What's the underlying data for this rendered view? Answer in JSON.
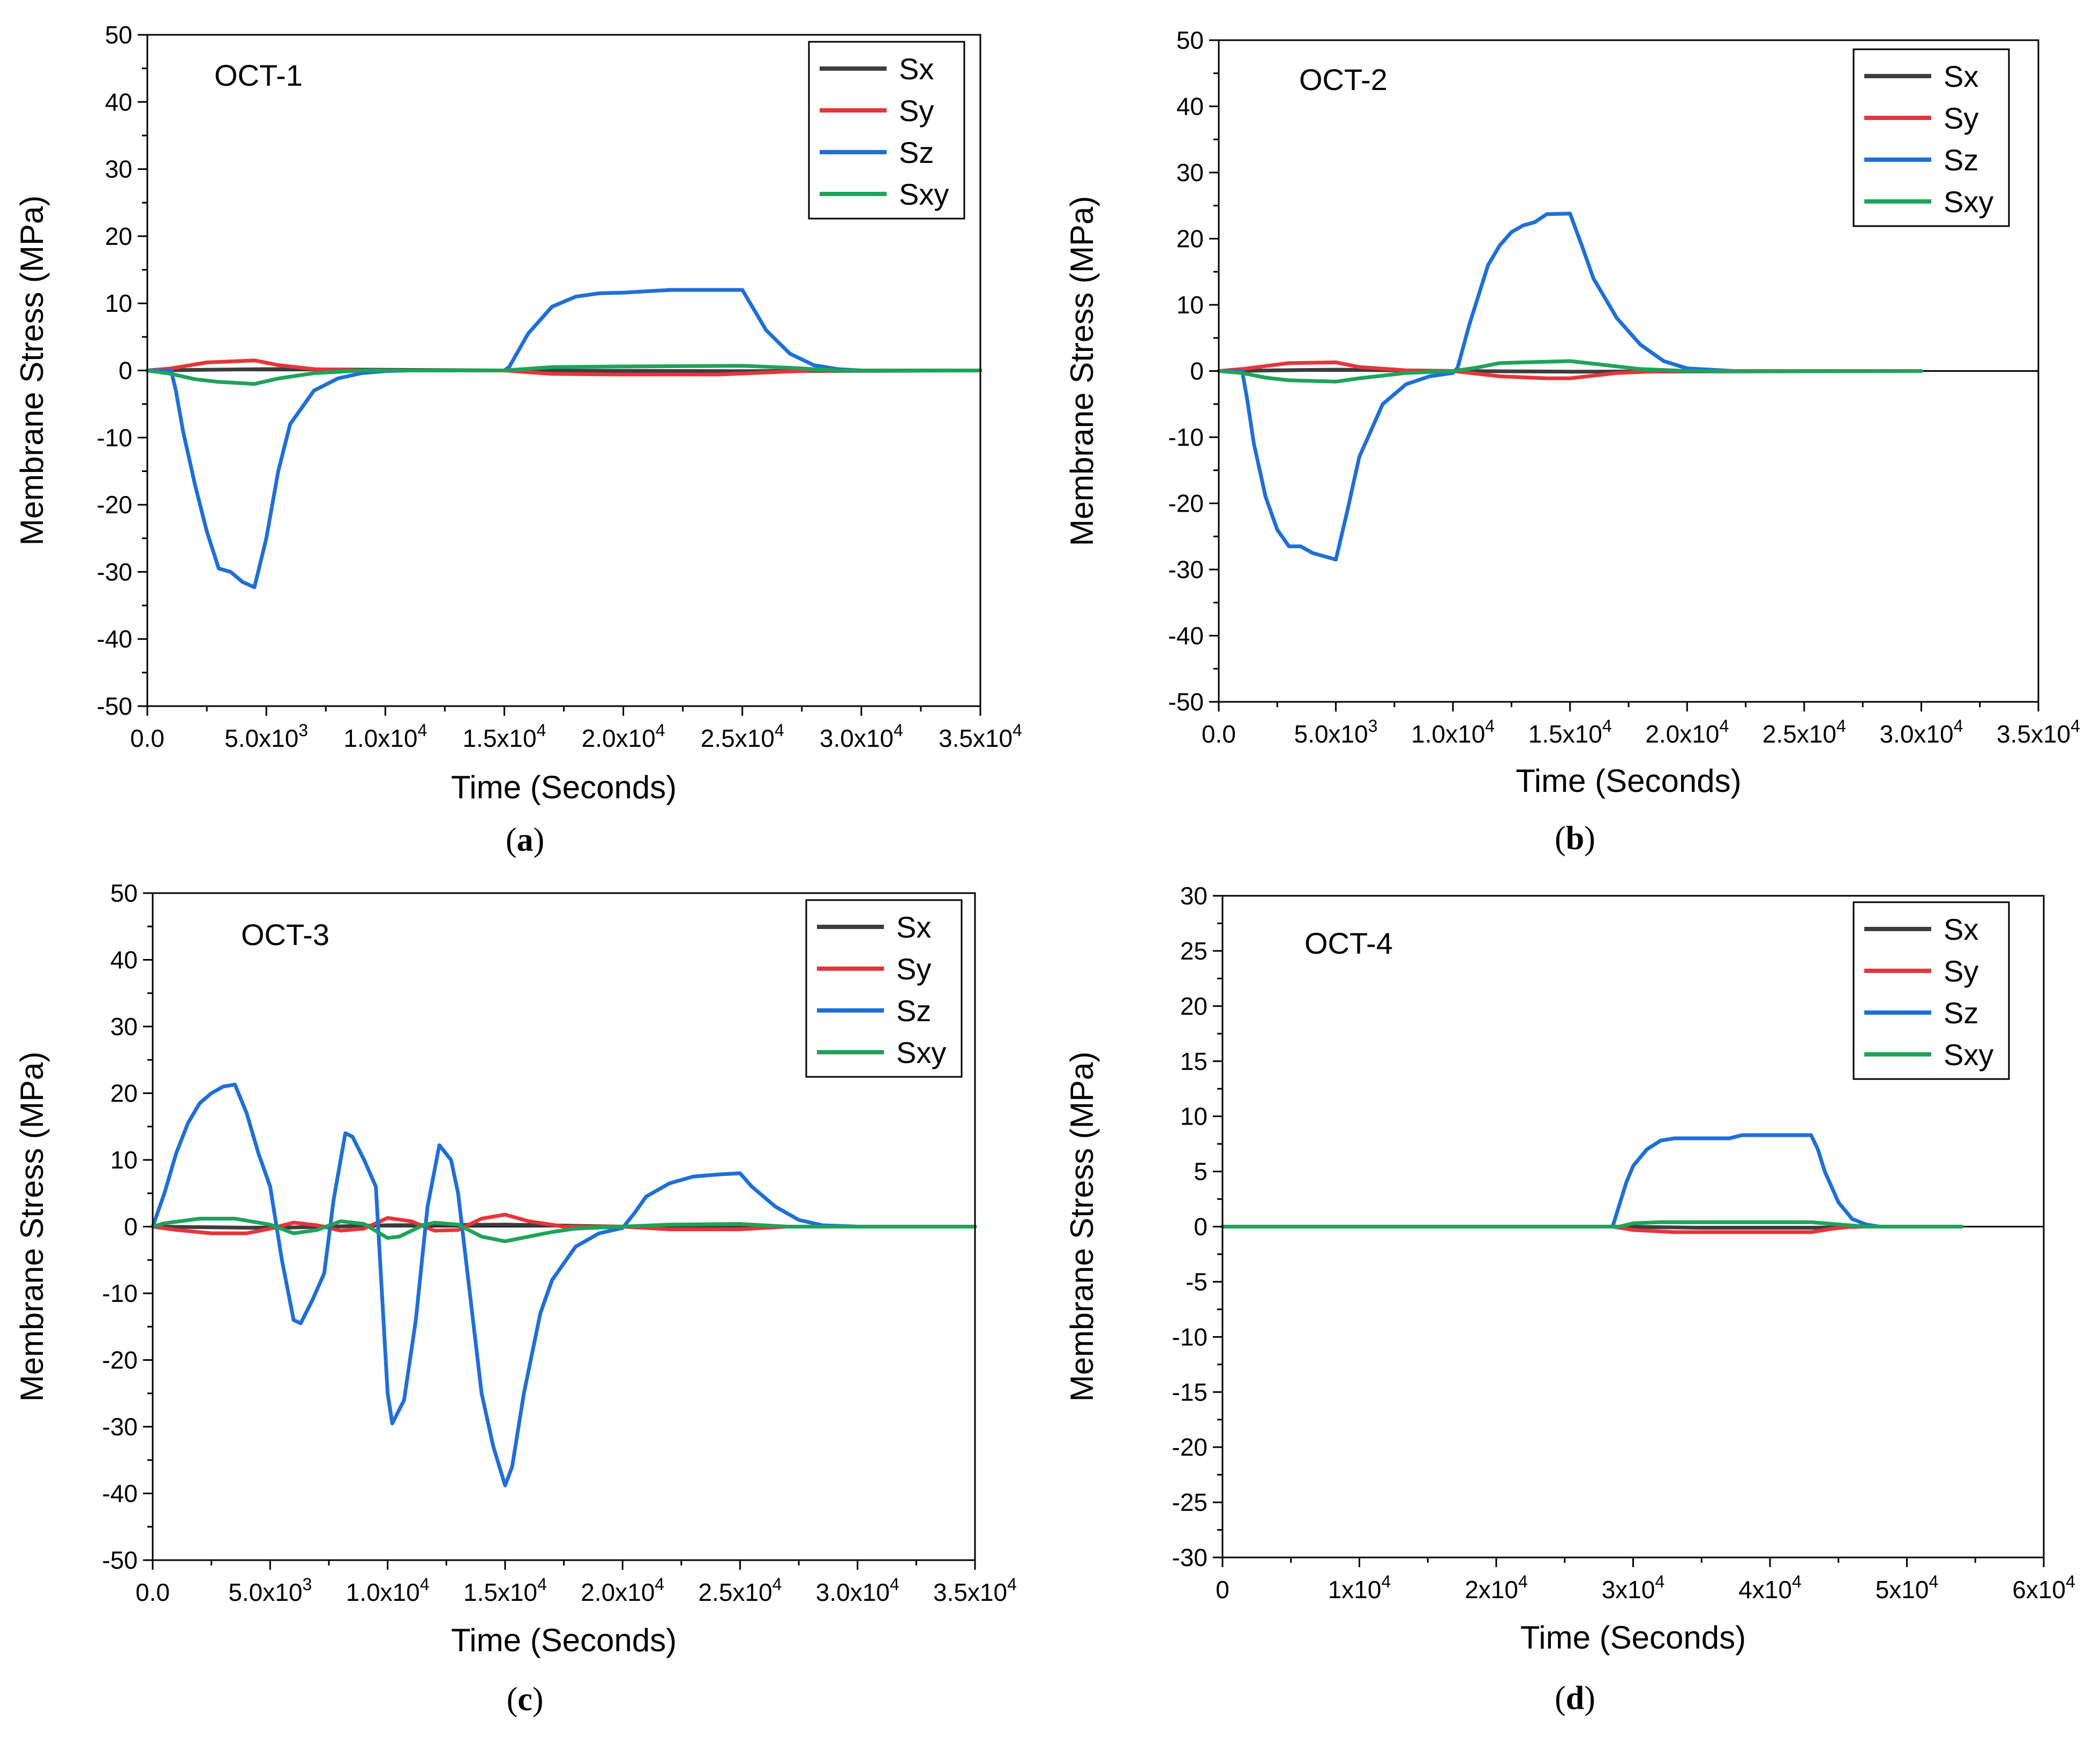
{
  "series_colors": {
    "Sx": "#3d3d3d",
    "Sy": "#e8343a",
    "Sz": "#1f6fd6",
    "Sxy": "#1fa35a"
  },
  "chart_data": [
    {
      "type": "line",
      "title": "OCT-1",
      "caption": "(a)",
      "caption_letter": "a",
      "xlabel": "Time (Seconds)",
      "ylabel": "Membrane Stress (MPa)",
      "xlim": [
        0,
        35000
      ],
      "ylim": [
        -50,
        50
      ],
      "xticks": [
        0,
        5000,
        10000,
        15000,
        20000,
        25000,
        30000,
        35000
      ],
      "xtick_labels": [
        {
          "m": "0.0",
          "e": ""
        },
        {
          "m": "5.0x10",
          "e": "3"
        },
        {
          "m": "1.0x10",
          "e": "4"
        },
        {
          "m": "1.5x10",
          "e": "4"
        },
        {
          "m": "2.0x10",
          "e": "4"
        },
        {
          "m": "2.5x10",
          "e": "4"
        },
        {
          "m": "3.0x10",
          "e": "4"
        },
        {
          "m": "3.5x10",
          "e": "4"
        }
      ],
      "yticks": [
        -50,
        -40,
        -30,
        -20,
        -10,
        0,
        10,
        20,
        30,
        40,
        50
      ],
      "ytick_labels": [
        "-50",
        "-40",
        "-30",
        "-20",
        "-10",
        "0",
        "10",
        "20",
        "30",
        "40",
        "50"
      ],
      "legend": {
        "position": "top-right",
        "entries": [
          "Sx",
          "Sy",
          "Sz",
          "Sxy"
        ]
      },
      "series": [
        {
          "name": "Sx",
          "x": [
            0,
            5000,
            15000,
            25000,
            35000
          ],
          "y": [
            0,
            0.2,
            0,
            -0.1,
            0
          ]
        },
        {
          "name": "Sy",
          "x": [
            0,
            1000,
            2500,
            4500,
            5500,
            7000,
            9000,
            15000,
            17000,
            20000,
            24000,
            26000,
            28000,
            35000
          ],
          "y": [
            0,
            0.3,
            1.2,
            1.5,
            0.8,
            0.2,
            0,
            0,
            -0.5,
            -0.6,
            -0.6,
            -0.3,
            0,
            0
          ]
        },
        {
          "name": "Sz",
          "x": [
            0,
            1000,
            1200,
            1500,
            2000,
            2500,
            3000,
            3500,
            4000,
            4500,
            5000,
            5500,
            6000,
            7000,
            8000,
            9000,
            10000,
            11000,
            15000,
            15200,
            16000,
            17000,
            18000,
            19000,
            20000,
            21000,
            22000,
            23000,
            24000,
            25000,
            25500,
            26000,
            27000,
            28000,
            29000,
            30000,
            35000
          ],
          "y": [
            0,
            0,
            -3,
            -9,
            -17,
            -24,
            -29.5,
            -30,
            -31.5,
            -32.3,
            -25,
            -15,
            -8,
            -3,
            -1.2,
            -0.4,
            -0.1,
            0,
            0,
            0.5,
            5.5,
            9.5,
            11,
            11.5,
            11.6,
            11.8,
            12,
            12,
            12,
            12,
            9,
            6,
            2.5,
            0.8,
            0.2,
            0,
            0
          ]
        },
        {
          "name": "Sxy",
          "x": [
            0,
            1000,
            2000,
            3000,
            4500,
            5500,
            7000,
            9000,
            15000,
            17000,
            20000,
            25000,
            27000,
            29000,
            35000
          ],
          "y": [
            0,
            -0.5,
            -1.3,
            -1.7,
            -2,
            -1.2,
            -0.4,
            0,
            0,
            0.5,
            0.6,
            0.7,
            0.4,
            0,
            0
          ]
        }
      ]
    },
    {
      "type": "line",
      "title": "OCT-2",
      "caption": "(b)",
      "caption_letter": "b",
      "xlabel": "Time (Seconds)",
      "ylabel": "Membrane Stress (MPa)",
      "xlim": [
        0,
        35000
      ],
      "ylim": [
        -50,
        50
      ],
      "xticks": [
        0,
        5000,
        10000,
        15000,
        20000,
        25000,
        30000,
        35000
      ],
      "xtick_labels": [
        {
          "m": "0.0",
          "e": ""
        },
        {
          "m": "5.0x10",
          "e": "3"
        },
        {
          "m": "1.0x10",
          "e": "4"
        },
        {
          "m": "1.5x10",
          "e": "4"
        },
        {
          "m": "2.0x10",
          "e": "4"
        },
        {
          "m": "2.5x10",
          "e": "4"
        },
        {
          "m": "3.0x10",
          "e": "4"
        },
        {
          "m": "3.5x10",
          "e": "4"
        }
      ],
      "yticks": [
        -50,
        -40,
        -30,
        -20,
        -10,
        0,
        10,
        20,
        30,
        40,
        50
      ],
      "ytick_labels": [
        "-50",
        "-40",
        "-30",
        "-20",
        "-10",
        "0",
        "10",
        "20",
        "30",
        "40",
        "50"
      ],
      "legend": {
        "position": "top-right",
        "entries": [
          "Sx",
          "Sy",
          "Sz",
          "Sxy"
        ]
      },
      "series": [
        {
          "name": "Sx",
          "x": [
            0,
            5000,
            10000,
            15000,
            30000
          ],
          "y": [
            0,
            0.2,
            0,
            -0.1,
            0
          ]
        },
        {
          "name": "Sy",
          "x": [
            0,
            1000,
            3000,
            5000,
            6000,
            8000,
            10000,
            12000,
            14000,
            15000,
            17000,
            19000,
            30000
          ],
          "y": [
            0,
            0.3,
            1.2,
            1.3,
            0.6,
            0.1,
            0,
            -0.8,
            -1.1,
            -1.1,
            -0.3,
            0,
            0
          ]
        },
        {
          "name": "Sz",
          "x": [
            0,
            1000,
            1200,
            1500,
            2000,
            2500,
            3000,
            3500,
            4000,
            4500,
            5000,
            5500,
            6000,
            7000,
            8000,
            9000,
            10000,
            10200,
            10700,
            11500,
            12000,
            12500,
            13000,
            13500,
            14000,
            15000,
            15500,
            16000,
            17000,
            18000,
            19000,
            20000,
            22000,
            30000
          ],
          "y": [
            0,
            0,
            -4,
            -11,
            -19,
            -24,
            -26.5,
            -26.5,
            -27.5,
            -28,
            -28.5,
            -21,
            -13,
            -5,
            -2,
            -0.8,
            -0.3,
            0.5,
            7,
            16,
            19,
            21,
            22,
            22.5,
            23.7,
            23.8,
            19,
            14,
            8,
            4,
            1.5,
            0.4,
            0,
            0
          ]
        },
        {
          "name": "Sxy",
          "x": [
            0,
            1000,
            2000,
            3000,
            5000,
            6000,
            8000,
            10000,
            11000,
            12000,
            13000,
            15000,
            16000,
            18000,
            20000,
            30000
          ],
          "y": [
            0,
            -0.3,
            -1,
            -1.4,
            -1.6,
            -1.1,
            -0.3,
            0,
            0.5,
            1.2,
            1.3,
            1.5,
            1.1,
            0.3,
            0,
            0
          ]
        }
      ]
    },
    {
      "type": "line",
      "title": "OCT-3",
      "caption": "(c)",
      "caption_letter": "c",
      "xlabel": "Time (Seconds)",
      "ylabel": "Membrane Stress (MPa)",
      "xlim": [
        0,
        35000
      ],
      "ylim": [
        -50,
        50
      ],
      "xticks": [
        0,
        5000,
        10000,
        15000,
        20000,
        25000,
        30000,
        35000
      ],
      "xtick_labels": [
        {
          "m": "0.0",
          "e": ""
        },
        {
          "m": "5.0x10",
          "e": "3"
        },
        {
          "m": "1.0x10",
          "e": "4"
        },
        {
          "m": "1.5x10",
          "e": "4"
        },
        {
          "m": "2.0x10",
          "e": "4"
        },
        {
          "m": "2.5x10",
          "e": "4"
        },
        {
          "m": "3.0x10",
          "e": "4"
        },
        {
          "m": "3.5x10",
          "e": "4"
        }
      ],
      "yticks": [
        -50,
        -40,
        -30,
        -20,
        -10,
        0,
        10,
        20,
        30,
        40,
        50
      ],
      "ytick_labels": [
        "-50",
        "-40",
        "-30",
        "-20",
        "-10",
        "0",
        "10",
        "20",
        "30",
        "40",
        "50"
      ],
      "legend": {
        "position": "top-right",
        "entries": [
          "Sx",
          "Sy",
          "Sz",
          "Sxy"
        ]
      },
      "series": [
        {
          "name": "Sx",
          "x": [
            0,
            5000,
            10000,
            15000,
            20000,
            35000
          ],
          "y": [
            0,
            -0.2,
            0.2,
            0.3,
            0,
            0
          ]
        },
        {
          "name": "Sy",
          "x": [
            0,
            1000,
            2500,
            4000,
            5000,
            6000,
            7000,
            8000,
            9000,
            10000,
            11000,
            12000,
            13000,
            14000,
            15000,
            16000,
            17500,
            20000,
            22000,
            25000,
            27000,
            35000
          ],
          "y": [
            0,
            -0.5,
            -1,
            -1,
            -0.3,
            0.6,
            0.2,
            -0.6,
            -0.3,
            1.3,
            0.8,
            -0.6,
            -0.5,
            1.2,
            1.8,
            0.8,
            0,
            0,
            -0.4,
            -0.4,
            0,
            0
          ]
        },
        {
          "name": "Sz",
          "x": [
            0,
            500,
            1000,
            1500,
            2000,
            2500,
            3000,
            3500,
            4000,
            4500,
            5000,
            5500,
            6000,
            6300,
            6800,
            7300,
            7700,
            8200,
            8500,
            9000,
            9500,
            10000,
            10200,
            10700,
            11200,
            11700,
            12200,
            12700,
            13000,
            13500,
            14000,
            14500,
            15000,
            15300,
            15800,
            16500,
            17000,
            18000,
            19000,
            20000,
            20500,
            21000,
            22000,
            23000,
            24000,
            25000,
            25500,
            26500,
            27500,
            28500,
            30000,
            35000
          ],
          "y": [
            0,
            5,
            11,
            15.5,
            18.5,
            20,
            21,
            21.3,
            17,
            11,
            6,
            -5,
            -14,
            -14.5,
            -11,
            -7,
            4,
            14,
            13.5,
            10,
            6,
            -25,
            -29.5,
            -26,
            -14,
            3,
            12.2,
            10,
            5,
            -10,
            -25,
            -33,
            -38.8,
            -36,
            -25,
            -13,
            -8,
            -3,
            -1,
            -0.2,
            2,
            4.5,
            6.5,
            7.5,
            7.8,
            8,
            6,
            3,
            1,
            0.2,
            0,
            0
          ]
        },
        {
          "name": "Sxy",
          "x": [
            0,
            500,
            2000,
            3500,
            5000,
            6000,
            7000,
            8000,
            9000,
            10000,
            10500,
            11500,
            12000,
            13000,
            14000,
            15000,
            16000,
            17000,
            18000,
            20000,
            22000,
            25000,
            27000,
            35000
          ],
          "y": [
            0,
            0.5,
            1.2,
            1.2,
            0.3,
            -1,
            -0.5,
            0.8,
            0.4,
            -1.7,
            -1.5,
            0.2,
            0.6,
            0.3,
            -1.5,
            -2.2,
            -1.5,
            -0.8,
            -0.3,
            0,
            0.3,
            0.4,
            0,
            0
          ]
        }
      ]
    },
    {
      "type": "line",
      "title": "OCT-4",
      "caption": "(d)",
      "caption_letter": "d",
      "xlabel": "Time (Seconds)",
      "ylabel": "Membrane Stress (MPa)",
      "xlim": [
        0,
        60000
      ],
      "ylim": [
        -30,
        30
      ],
      "xticks": [
        0,
        10000,
        20000,
        30000,
        40000,
        50000,
        60000
      ],
      "xtick_labels": [
        {
          "m": "0",
          "e": ""
        },
        {
          "m": "1x10",
          "e": "4"
        },
        {
          "m": "2x10",
          "e": "4"
        },
        {
          "m": "3x10",
          "e": "4"
        },
        {
          "m": "4x10",
          "e": "4"
        },
        {
          "m": "5x10",
          "e": "4"
        },
        {
          "m": "6x10",
          "e": "4"
        }
      ],
      "yticks": [
        -30,
        -25,
        -20,
        -15,
        -10,
        -5,
        0,
        5,
        10,
        15,
        20,
        25,
        30
      ],
      "ytick_labels": [
        "-30",
        "-25",
        "-20",
        "-15",
        "-10",
        "-5",
        "0",
        "5",
        "10",
        "15",
        "20",
        "25",
        "30"
      ],
      "legend": {
        "position": "top-right",
        "entries": [
          "Sx",
          "Sy",
          "Sz",
          "Sxy"
        ]
      },
      "series": [
        {
          "name": "Sx",
          "x": [
            0,
            29000,
            35000,
            43000,
            47000,
            54000
          ],
          "y": [
            0,
            0,
            -0.1,
            -0.1,
            0,
            0
          ]
        },
        {
          "name": "Sy",
          "x": [
            0,
            28500,
            30000,
            33000,
            38000,
            43000,
            44500,
            46000,
            54000
          ],
          "y": [
            0,
            0,
            -0.3,
            -0.5,
            -0.5,
            -0.5,
            -0.2,
            0,
            0
          ]
        },
        {
          "name": "Sz",
          "x": [
            0,
            28500,
            29000,
            29500,
            30000,
            31000,
            32000,
            33000,
            36000,
            37000,
            38000,
            40000,
            43000,
            43500,
            44000,
            45000,
            46000,
            47000,
            48000,
            54000
          ],
          "y": [
            0,
            0,
            2,
            4,
            5.5,
            7,
            7.8,
            8,
            8,
            8,
            8.3,
            8.3,
            8.3,
            7,
            5,
            2.2,
            0.7,
            0.2,
            0,
            0
          ]
        },
        {
          "name": "Sxy",
          "x": [
            0,
            29000,
            30000,
            32000,
            40000,
            43000,
            45000,
            47000,
            54000
          ],
          "y": [
            0,
            0,
            0.3,
            0.4,
            0.4,
            0.4,
            0.2,
            0,
            0
          ]
        }
      ]
    }
  ]
}
